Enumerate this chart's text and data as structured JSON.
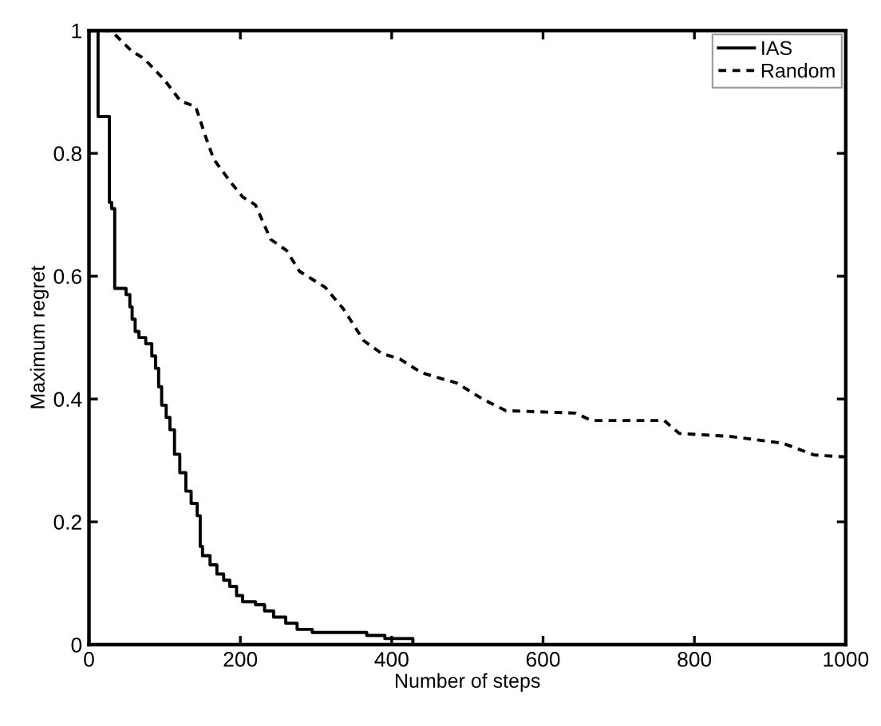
{
  "chart_data": {
    "type": "line",
    "xlabel": "Number of steps",
    "ylabel": "Maximum regret",
    "series": [
      {
        "name": "IAS",
        "type": "step",
        "color": "#000000",
        "line_style": "solid",
        "x": [
          0,
          12,
          27,
          30,
          34,
          49,
          54,
          57,
          61,
          66,
          75,
          83,
          88,
          92,
          96,
          102,
          107,
          113,
          120,
          128,
          135,
          143,
          147,
          150,
          160,
          169,
          178,
          186,
          195,
          203,
          220,
          232,
          244,
          260,
          275,
          295,
          367,
          391,
          428
        ],
        "values": [
          1,
          0.86,
          0.72,
          0.71,
          0.58,
          0.57,
          0.55,
          0.53,
          0.51,
          0.5,
          0.49,
          0.47,
          0.45,
          0.42,
          0.39,
          0.37,
          0.35,
          0.31,
          0.28,
          0.25,
          0.23,
          0.21,
          0.16,
          0.145,
          0.13,
          0.115,
          0.105,
          0.095,
          0.08,
          0.07,
          0.065,
          0.055,
          0.045,
          0.035,
          0.025,
          0.02,
          0.015,
          0.01,
          0
        ]
      },
      {
        "name": "Random",
        "color": "#000000",
        "line_style": "dashed",
        "x": [
          0,
          29,
          56,
          73,
          100,
          121,
          141,
          155,
          165,
          186,
          203,
          220,
          240,
          261,
          278,
          295,
          312,
          336,
          363,
          387,
          411,
          439,
          486,
          520,
          551,
          643,
          664,
          760,
          780,
          848,
          917,
          958,
          995,
          1000
        ],
        "values": [
          1,
          1,
          0.967,
          0.954,
          0.919,
          0.885,
          0.876,
          0.824,
          0.79,
          0.755,
          0.729,
          0.716,
          0.66,
          0.642,
          0.608,
          0.595,
          0.582,
          0.547,
          0.495,
          0.474,
          0.465,
          0.443,
          0.426,
          0.4,
          0.381,
          0.377,
          0.365,
          0.365,
          0.344,
          0.339,
          0.328,
          0.309,
          0.306,
          0.306
        ]
      }
    ],
    "xlim": [
      0,
      1000
    ],
    "xticks": [
      0,
      200,
      400,
      600,
      800,
      1000
    ],
    "ylim": [
      0,
      1
    ],
    "yticks": [
      0,
      0.2,
      0.4,
      0.6,
      0.8,
      1
    ],
    "grid": false,
    "legend": "top right"
  }
}
